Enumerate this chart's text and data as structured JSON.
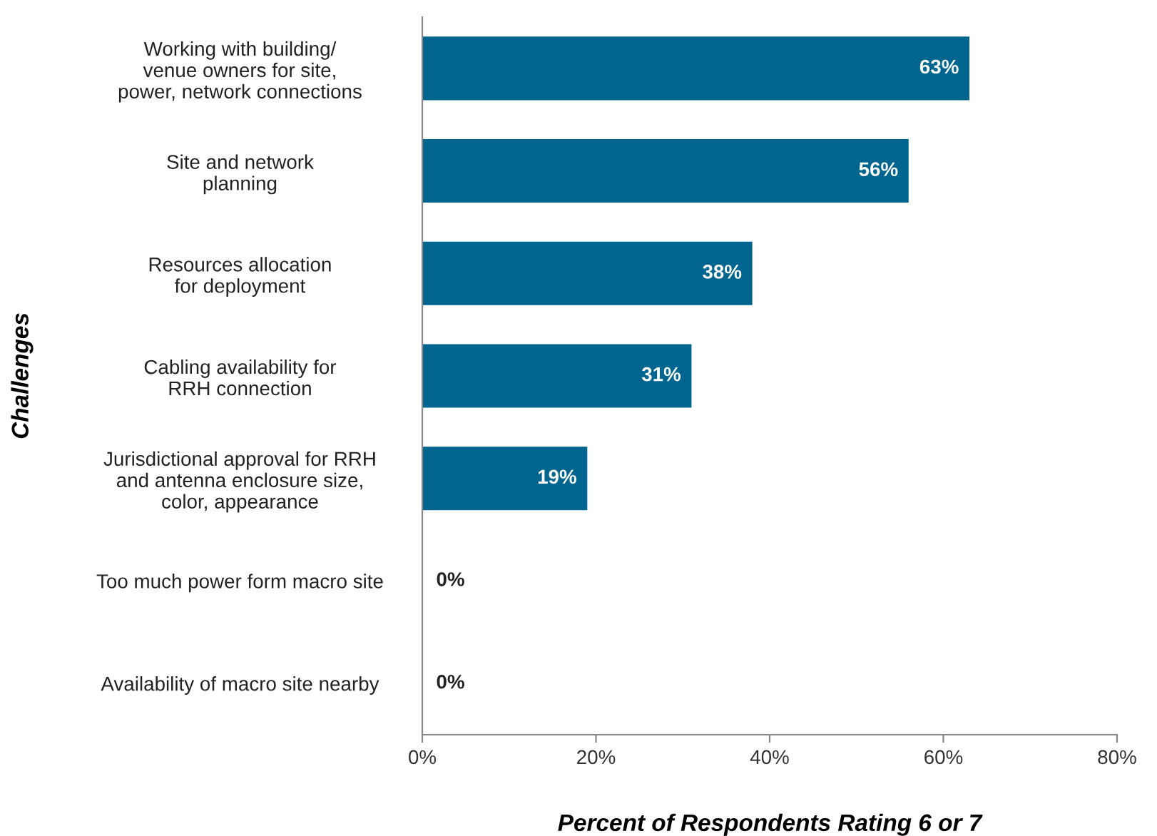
{
  "chart_data": {
    "type": "bar",
    "orientation": "horizontal",
    "categories": [
      "Working with building/\nvenue owners for site,\npower, network connections",
      "Site and network\nplanning",
      "Resources allocation\nfor deployment",
      "Cabling availability for\nRRH connection",
      "Jurisdictional approval for RRH\nand antenna enclosure size,\ncolor, appearance",
      "Too much power form macro site",
      "Availability of macro site nearby"
    ],
    "values": [
      63,
      56,
      38,
      31,
      19,
      0,
      0
    ],
    "value_labels": [
      "63%",
      "56%",
      "38%",
      "31%",
      "19%",
      "0%",
      "0%"
    ],
    "color": "#006690",
    "xlim": [
      0,
      80
    ],
    "xticks": [
      {
        "value": 0,
        "label": "0%"
      },
      {
        "value": 20,
        "label": "20%"
      },
      {
        "value": 40,
        "label": "40%"
      },
      {
        "value": 60,
        "label": "60%"
      },
      {
        "value": 80,
        "label": "80%"
      }
    ],
    "xlabel": "Percent of Respondents Rating 6 or 7",
    "ylabel": "Challenges",
    "grid": false,
    "legend": false
  }
}
